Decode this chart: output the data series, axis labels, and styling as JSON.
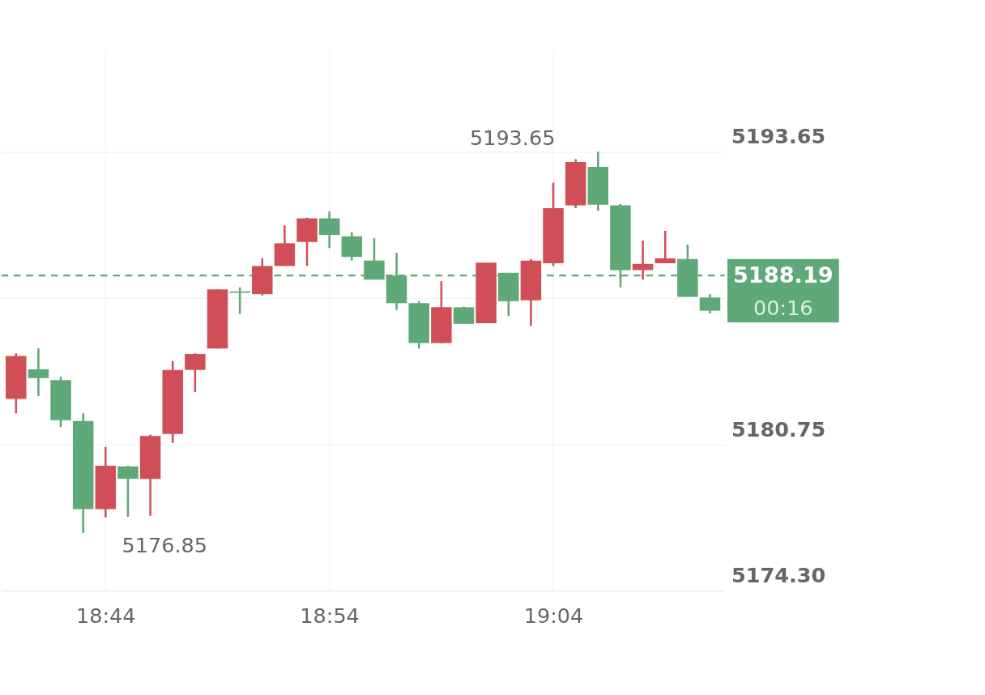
{
  "chart_data": {
    "type": "candlestick",
    "categories": [
      null,
      null,
      null,
      null,
      "18:44",
      null,
      null,
      null,
      null,
      null,
      null,
      null,
      null,
      null,
      "18:54",
      null,
      null,
      null,
      null,
      null,
      null,
      null,
      null,
      null,
      "19:04",
      null,
      null,
      null,
      null,
      null,
      null,
      null
    ],
    "ohlc": [
      [
        5182.75,
        5184.76,
        5182.12,
        5184.64
      ],
      [
        5184.06,
        5184.98,
        5182.88,
        5183.67
      ],
      [
        5183.58,
        5183.73,
        5181.51,
        5181.81
      ],
      [
        5181.78,
        5182.12,
        5176.85,
        5177.9
      ],
      [
        5177.9,
        5180.63,
        5177.53,
        5179.81
      ],
      [
        5179.78,
        5179.81,
        5177.56,
        5179.23
      ],
      [
        5179.23,
        5181.18,
        5177.6,
        5181.12
      ],
      [
        5181.21,
        5184.42,
        5180.81,
        5184.03
      ],
      [
        5184.03,
        5184.76,
        5183.06,
        5184.73
      ],
      [
        5184.97,
        5187.58,
        5184.97,
        5187.58
      ],
      [
        5187.49,
        5187.67,
        5186.49,
        5187.43
      ],
      [
        5187.37,
        5188.95,
        5187.31,
        5188.61
      ],
      [
        5188.61,
        5190.4,
        5188.61,
        5189.61
      ],
      [
        5189.67,
        5190.74,
        5188.61,
        5190.71
      ],
      [
        5190.71,
        5191.01,
        5189.4,
        5189.98
      ],
      [
        5189.92,
        5190.1,
        5188.85,
        5189.01
      ],
      [
        5188.85,
        5189.83,
        5188.01,
        5188.01
      ],
      [
        5188.19,
        5189.19,
        5186.67,
        5186.97
      ],
      [
        5186.97,
        5187.06,
        5184.97,
        5185.21
      ],
      [
        5185.21,
        5187.94,
        5185.21,
        5186.79
      ],
      [
        5186.79,
        5186.82,
        5186.06,
        5186.06
      ],
      [
        5186.09,
        5188.76,
        5186.09,
        5188.76
      ],
      [
        5188.31,
        5188.31,
        5186.4,
        5187.06
      ],
      [
        5187.1,
        5188.92,
        5185.97,
        5188.85
      ],
      [
        5188.73,
        5192.28,
        5188.61,
        5191.16
      ],
      [
        5191.28,
        5193.32,
        5191.16,
        5193.19
      ],
      [
        5192.98,
        5193.65,
        5191.04,
        5191.31
      ],
      [
        5191.28,
        5191.34,
        5187.67,
        5188.43
      ],
      [
        5188.43,
        5189.73,
        5188.01,
        5188.7
      ],
      [
        5188.73,
        5190.16,
        5188.73,
        5188.95
      ],
      [
        5188.92,
        5189.55,
        5187.25,
        5187.25
      ],
      [
        5187.22,
        5187.37,
        5186.52,
        5186.64
      ]
    ],
    "colors": [
      "#d04f57",
      "#5fa878",
      "#5fa878",
      "#5fa878",
      "#d04f57",
      "#5fa878",
      "#d04f57",
      "#d04f57",
      "#d04f57",
      "#d04f57",
      "#5fa878",
      "#d04f57",
      "#d04f57",
      "#d04f57",
      "#5fa878",
      "#5fa878",
      "#5fa878",
      "#5fa878",
      "#5fa878",
      "#d04f57",
      "#5fa878",
      "#d04f57",
      "#5fa878",
      "#d04f57",
      "#d04f57",
      "#d04f57",
      "#5fa878",
      "#5fa878",
      "#d04f57",
      "#d04f57",
      "#5fa878",
      "#5fa878"
    ],
    "ylim": [
      5174.3,
      5198.1
    ],
    "yticks": [
      {
        "value": 5174.3,
        "label": "5174.30"
      },
      5180.75,
      {
        "value": 5187.2,
        "label": null
      },
      5193.65
    ],
    "grid": true,
    "ref_lines": [
      {
        "axis": "y",
        "value": 5188.19,
        "label": "5188.19",
        "color": "#5fa878",
        "line_style": "dashed"
      }
    ],
    "annotations": [
      "5193.65",
      "5176.85",
      "00:16"
    ]
  }
}
